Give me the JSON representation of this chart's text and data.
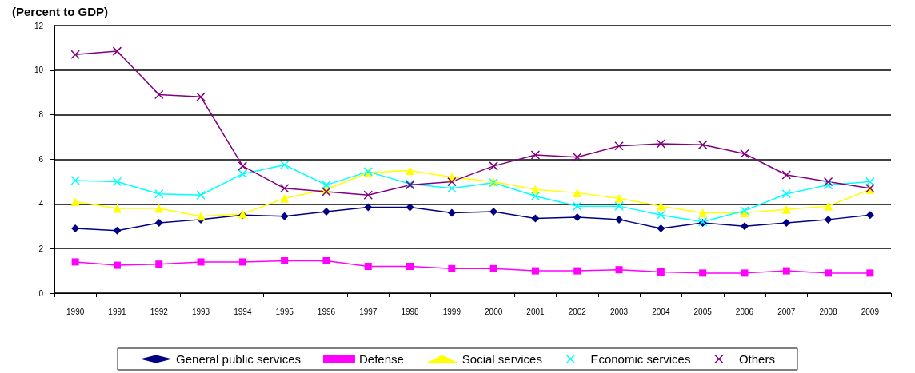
{
  "chart_data": {
    "type": "line",
    "title": "(Percent to GDP)",
    "categories": [
      "1990",
      "1991",
      "1992",
      "1993",
      "1994",
      "1995",
      "1996",
      "1997",
      "1998",
      "1999",
      "2000",
      "2001",
      "2002",
      "2003",
      "2004",
      "2005",
      "2006",
      "2007",
      "2008",
      "2009"
    ],
    "series": [
      {
        "name": "General public services",
        "color": "#000080",
        "marker": "diamond",
        "values": [
          2.9,
          2.8,
          3.15,
          3.3,
          3.5,
          3.45,
          3.65,
          3.85,
          3.85,
          3.6,
          3.65,
          3.35,
          3.4,
          3.3,
          2.9,
          3.15,
          3.0,
          3.15,
          3.3,
          3.5
        ]
      },
      {
        "name": "Defense",
        "color": "#ff00ff",
        "marker": "square",
        "values": [
          1.4,
          1.25,
          1.3,
          1.4,
          1.4,
          1.45,
          1.45,
          1.2,
          1.2,
          1.1,
          1.1,
          1.0,
          1.0,
          1.05,
          0.95,
          0.9,
          0.9,
          1.0,
          0.9,
          0.9
        ]
      },
      {
        "name": "Social services",
        "color": "#ffff00",
        "marker": "triangle",
        "values": [
          4.1,
          3.8,
          3.8,
          3.45,
          3.55,
          4.25,
          4.65,
          5.4,
          5.5,
          5.2,
          5.0,
          4.65,
          4.5,
          4.25,
          3.9,
          3.6,
          3.6,
          3.75,
          3.9,
          4.65
        ]
      },
      {
        "name": "Economic services",
        "color": "#00ffff",
        "marker": "cross",
        "values": [
          5.05,
          5.0,
          4.45,
          4.4,
          5.35,
          5.75,
          4.85,
          5.45,
          4.9,
          4.7,
          4.95,
          4.35,
          3.9,
          3.9,
          3.5,
          3.2,
          3.7,
          4.45,
          4.85,
          5.0
        ]
      },
      {
        "name": "Others",
        "color": "#800080",
        "marker": "cross",
        "values": [
          10.7,
          10.85,
          8.9,
          8.8,
          5.7,
          4.7,
          4.55,
          4.4,
          4.85,
          5.0,
          5.7,
          6.2,
          6.1,
          6.6,
          6.7,
          6.65,
          6.25,
          5.3,
          5.0,
          4.7
        ]
      }
    ],
    "ylim": [
      0,
      12
    ],
    "yticks": [
      0,
      2,
      4,
      6,
      8,
      10,
      12
    ],
    "grid": "y",
    "legend": "bottom",
    "line_style": "solid"
  }
}
